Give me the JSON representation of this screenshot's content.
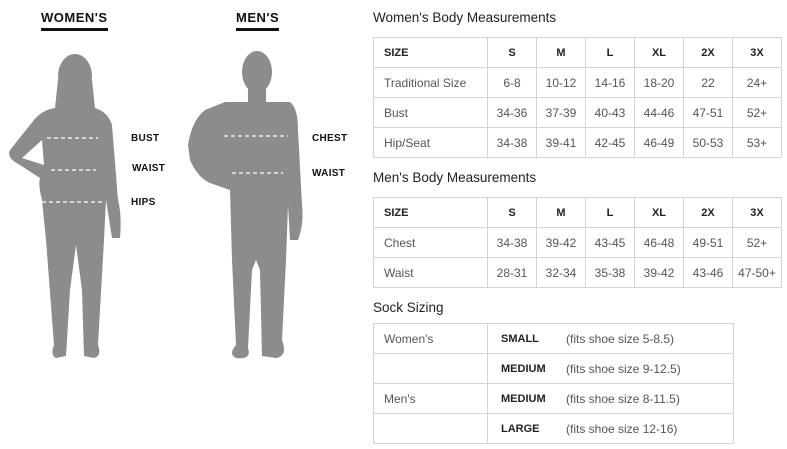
{
  "figures": {
    "womens_title": "WOMEN'S",
    "mens_title": "MEN'S",
    "womens_labels": [
      "BUST",
      "WAIST",
      "HIPS"
    ],
    "mens_labels": [
      "CHEST",
      "WAIST"
    ],
    "silhouette_color": "#8c8c8c"
  },
  "womens": {
    "title": "Women's Body Measurements",
    "header": [
      "SIZE",
      "S",
      "M",
      "L",
      "XL",
      "2X",
      "3X"
    ],
    "rows": [
      [
        "Traditional Size",
        "6-8",
        "10-12",
        "14-16",
        "18-20",
        "22",
        "24+"
      ],
      [
        "Bust",
        "34-36",
        "37-39",
        "40-43",
        "44-46",
        "47-51",
        "52+"
      ],
      [
        "Hip/Seat",
        "34-38",
        "39-41",
        "42-45",
        "46-49",
        "50-53",
        "53+"
      ]
    ]
  },
  "mens": {
    "title": "Men's Body Measurements",
    "header": [
      "SIZE",
      "S",
      "M",
      "L",
      "XL",
      "2X",
      "3X"
    ],
    "rows": [
      [
        "Chest",
        "34-38",
        "39-42",
        "43-45",
        "46-48",
        "49-51",
        "52+"
      ],
      [
        "Waist",
        "28-31",
        "32-34",
        "35-38",
        "39-42",
        "43-46",
        "47-50+"
      ]
    ]
  },
  "socks": {
    "title": "Sock Sizing",
    "rows": [
      [
        "Women's",
        "SMALL",
        "(fits shoe size 5-8.5)"
      ],
      [
        "",
        "MEDIUM",
        "(fits shoe size 9-12.5)"
      ],
      [
        "Men's",
        "MEDIUM",
        "(fits shoe size 8-11.5)"
      ],
      [
        "",
        "LARGE",
        "(fits shoe size 12-16)"
      ]
    ]
  }
}
